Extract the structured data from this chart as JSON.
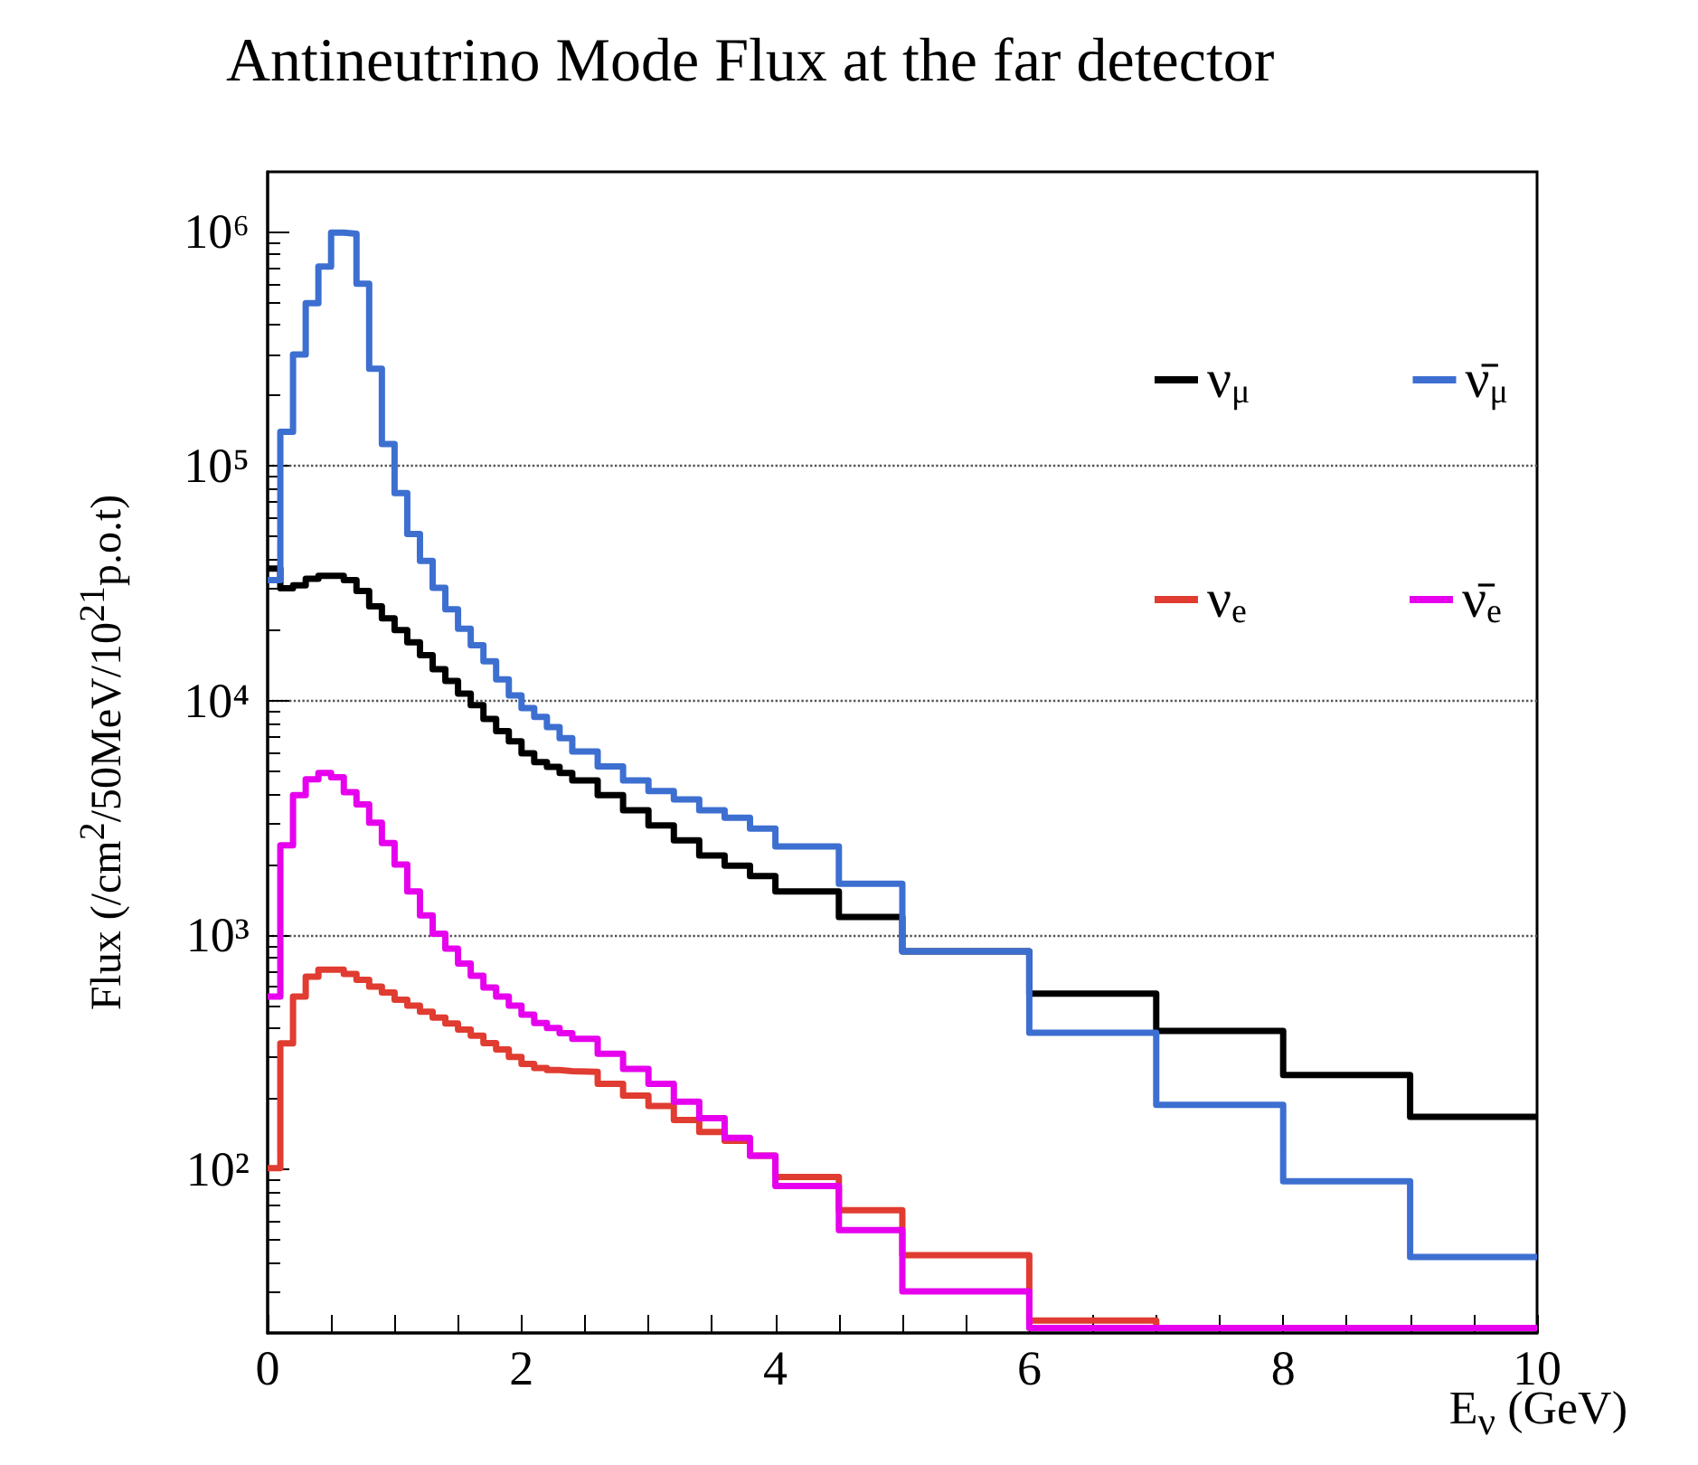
{
  "chart_data": {
    "type": "histogram",
    "title": "Antineutrino Mode Flux at the far detector",
    "xlabel": "E$_{ν}$ (GeV)",
    "ylabel": "Flux (/cm$^{2}$/50MeV/10$^{21}$p.o.t)",
    "bins": [
      0,
      0.1,
      0.2,
      0.3,
      0.4,
      0.5,
      0.6,
      0.7,
      0.8,
      0.9,
      1.0,
      1.1,
      1.2,
      1.3,
      1.4,
      1.5,
      1.6,
      1.7,
      1.8,
      1.9,
      2.0,
      2.1,
      2.2,
      2.3,
      2.4,
      2.6,
      2.8,
      3.0,
      3.2,
      3.4,
      3.6,
      3.8,
      4.0,
      4.5,
      5,
      6,
      7,
      8,
      9,
      10
    ],
    "series": [
      {
        "name": "ν$_{μ}$",
        "color": "#000000",
        "values": [
          36500,
          30100,
          31000,
          33000,
          34000,
          34000,
          32600,
          29300,
          25200,
          22400,
          19950,
          17700,
          15600,
          13600,
          12100,
          10700,
          9540,
          8340,
          7400,
          6690,
          5950,
          5450,
          5200,
          4900,
          4560,
          3940,
          3400,
          2930,
          2530,
          2180,
          1970,
          1780,
          1530,
          1190,
          850,
          561,
          389,
          252,
          167
        ]
      },
      {
        "name": "ν̄$_{μ}$",
        "color": "#3d6fd1",
        "values": [
          32600,
          140000,
          299000,
          495000,
          710000,
          990000,
          980000,
          600000,
          260000,
          124000,
          76700,
          51300,
          39400,
          30200,
          24500,
          20200,
          17200,
          14700,
          12300,
          10500,
          9270,
          8500,
          7700,
          6900,
          6050,
          5230,
          4560,
          4100,
          3780,
          3400,
          3160,
          2840,
          2380,
          1650,
          850,
          382,
          188,
          88.7,
          42.2
        ]
      },
      {
        "name": "ν$_{e}$",
        "color": "#e03c31",
        "values": [
          101,
          344,
          545,
          662,
          710,
          710,
          681,
          642,
          601,
          567,
          528,
          499,
          470,
          443,
          418,
          394,
          371,
          345,
          324,
          301,
          281,
          270,
          265,
          262,
          260,
          231,
          206,
          186,
          162,
          144,
          132,
          114,
          92.7,
          66.8,
          42.9,
          22.6,
          21,
          21,
          21
        ]
      },
      {
        "name": "ν̄$_{e}$",
        "color": "#e600ee",
        "values": [
          545,
          2410,
          3940,
          4610,
          4900,
          4700,
          4060,
          3600,
          3010,
          2460,
          1995,
          1530,
          1210,
          1010,
          873,
          753,
          668,
          596,
          545,
          499,
          456,
          420,
          400,
          380,
          360,
          311,
          268,
          231,
          194,
          165,
          136,
          114,
          84.8,
          55,
          30.1,
          21,
          21,
          21,
          21
        ]
      }
    ],
    "xlim": [
      0,
      10
    ],
    "xticks": [
      0,
      {
        "value": 0.5,
        "label": null
      },
      {
        "value": 1,
        "label": null
      },
      {
        "value": 1.5,
        "label": null
      },
      2,
      {
        "value": 2.5,
        "label": null
      },
      {
        "value": 3,
        "label": null
      },
      {
        "value": 3.5,
        "label": null
      },
      4,
      {
        "value": 4.5,
        "label": null
      },
      {
        "value": 5,
        "label": null
      },
      {
        "value": 5.5,
        "label": null
      },
      6,
      {
        "value": 6.5,
        "label": null
      },
      {
        "value": 7,
        "label": null
      },
      {
        "value": 7.5,
        "label": null
      },
      8,
      {
        "value": 8.5,
        "label": null
      },
      {
        "value": 9,
        "label": null
      },
      {
        "value": 9.5,
        "label": null
      },
      10
    ],
    "ylim": [
      20,
      1800000
    ],
    "yticks": [
      {
        "value": 30,
        "label": null
      },
      {
        "value": 40,
        "label": null
      },
      {
        "value": 50,
        "label": null
      },
      {
        "value": 60,
        "label": null
      },
      {
        "value": 70,
        "label": null
      },
      {
        "value": 80,
        "label": null
      },
      {
        "value": 90,
        "label": null
      },
      {
        "value": 100,
        "label": "10²"
      },
      {
        "value": 200,
        "label": null
      },
      {
        "value": 300,
        "label": null
      },
      {
        "value": 400,
        "label": null
      },
      {
        "value": 500,
        "label": null
      },
      {
        "value": 600,
        "label": null
      },
      {
        "value": 700,
        "label": null
      },
      {
        "value": 800,
        "label": null
      },
      {
        "value": 900,
        "label": null
      },
      {
        "value": 1000,
        "label": "10³"
      },
      {
        "value": 2000,
        "label": null
      },
      {
        "value": 3000,
        "label": null
      },
      {
        "value": 4000,
        "label": null
      },
      {
        "value": 5000,
        "label": null
      },
      {
        "value": 6000,
        "label": null
      },
      {
        "value": 7000,
        "label": null
      },
      {
        "value": 8000,
        "label": null
      },
      {
        "value": 9000,
        "label": null
      },
      {
        "value": 10000,
        "label": "10⁴"
      },
      {
        "value": 20000,
        "label": null
      },
      {
        "value": 30000,
        "label": null
      },
      {
        "value": 40000,
        "label": null
      },
      {
        "value": 50000,
        "label": null
      },
      {
        "value": 60000,
        "label": null
      },
      {
        "value": 70000,
        "label": null
      },
      {
        "value": 80000,
        "label": null
      },
      {
        "value": 90000,
        "label": null
      },
      {
        "value": 100000,
        "label": "10⁵"
      },
      {
        "value": 200000,
        "label": null
      },
      {
        "value": 300000,
        "label": null
      },
      {
        "value": 400000,
        "label": null
      },
      {
        "value": 500000,
        "label": null
      },
      {
        "value": 600000,
        "label": null
      },
      {
        "value": 700000,
        "label": null
      },
      {
        "value": 800000,
        "label": null
      },
      {
        "value": 900000,
        "label": null
      },
      {
        "value": 1000000,
        "label": "10⁶"
      }
    ],
    "log": "y",
    "grid": "y",
    "legend": "top right"
  }
}
